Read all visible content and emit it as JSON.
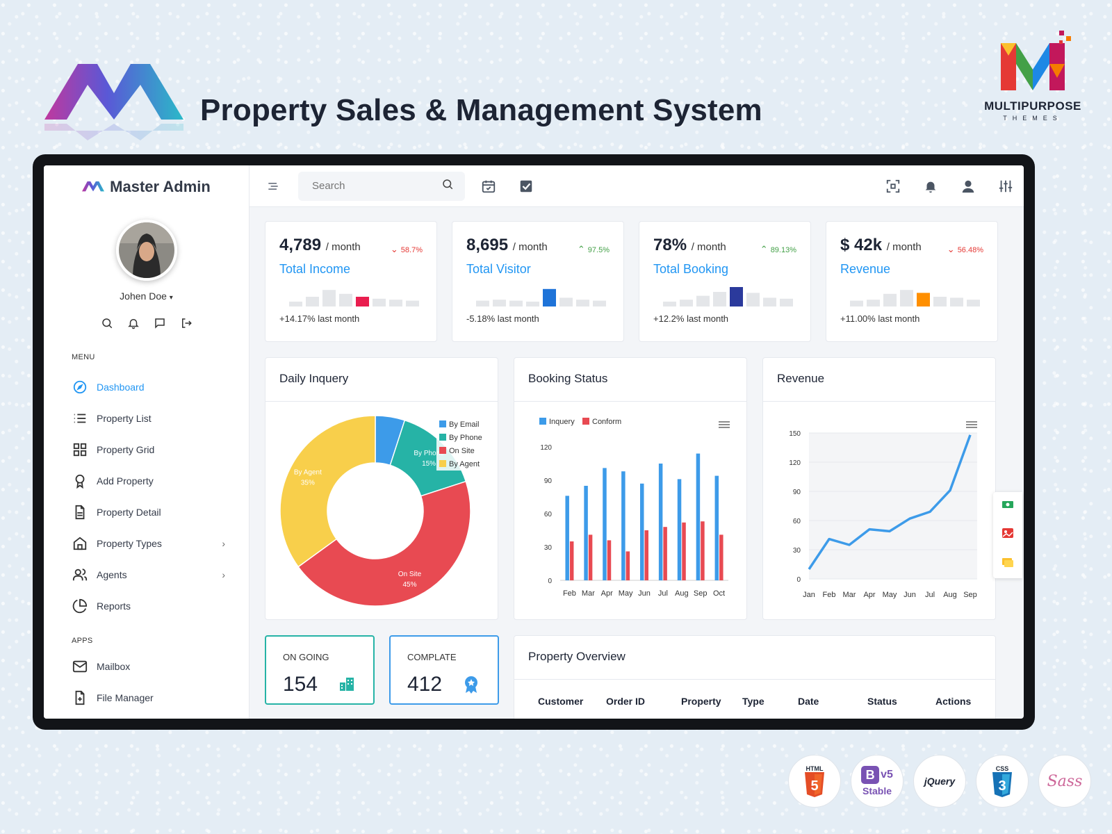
{
  "promo": {
    "title": "Property Sales & Management System",
    "brand_name": "MULTIPURPOSE",
    "brand_sub": "THEMES",
    "badges": [
      "HTML",
      "v5",
      "Stable",
      "jQuery",
      "CSS",
      "Sass"
    ]
  },
  "sidebar": {
    "brand": "Master Admin",
    "user": "Johen Doe",
    "menu_label": "MENU",
    "apps_label": "APPS",
    "menu": [
      {
        "label": "Dashboard",
        "icon": "compass-icon",
        "active": true
      },
      {
        "label": "Property List",
        "icon": "list-icon"
      },
      {
        "label": "Property Grid",
        "icon": "grid-icon"
      },
      {
        "label": "Add Property",
        "icon": "award-icon"
      },
      {
        "label": "Property Detail",
        "icon": "file-text-icon"
      },
      {
        "label": "Property Types",
        "icon": "home-icon",
        "chevron": "›"
      },
      {
        "label": "Agents",
        "icon": "users-icon",
        "chevron": "›"
      },
      {
        "label": "Reports",
        "icon": "pie-chart-icon"
      }
    ],
    "apps": [
      {
        "label": "Mailbox",
        "icon": "mail-icon"
      },
      {
        "label": "File Manager",
        "icon": "file-plus-icon"
      }
    ]
  },
  "topbar": {
    "search_placeholder": "Search"
  },
  "stats": [
    {
      "value": "4,789",
      "per": "/ month",
      "delta": "58.7%",
      "trend": "down",
      "label": "Total Income",
      "foot": "+14.17% last month",
      "accent": "#e91e4f",
      "bars": [
        0.25,
        0.5,
        0.85,
        0.65,
        0.5,
        0.4,
        0.35,
        0.3
      ],
      "highlight": 4
    },
    {
      "value": "8,695",
      "per": "/ month",
      "delta": "97.5%",
      "trend": "up",
      "label": "Total Visitor",
      "foot": "-5.18% last month",
      "accent": "#1e73d8",
      "bars": [
        0.3,
        0.35,
        0.3,
        0.25,
        0.9,
        0.45,
        0.35,
        0.3
      ],
      "highlight": 4
    },
    {
      "value": "78%",
      "per": "/ month",
      "delta": "89.13%",
      "trend": "up",
      "label": "Total Booking",
      "foot": "+12.2% last month",
      "accent": "#2b3a9c",
      "bars": [
        0.25,
        0.35,
        0.55,
        0.75,
        1.0,
        0.7,
        0.45,
        0.4
      ],
      "highlight": 4
    },
    {
      "value": "$ 42k",
      "per": "/ month",
      "delta": "56.48%",
      "trend": "down",
      "label": "Revenue",
      "foot": "+11.00% last month",
      "accent": "#ff8f00",
      "bars": [
        0.3,
        0.35,
        0.65,
        0.85,
        0.7,
        0.5,
        0.45,
        0.35
      ],
      "highlight": 4
    }
  ],
  "daily_inquery": {
    "title": "Daily Inquery",
    "chart_data": {
      "type": "pie",
      "categories": [
        "By Email",
        "By Phone",
        "On Site",
        "By Agent"
      ],
      "values": [
        5,
        15,
        45,
        35
      ],
      "colors": [
        "#3d9be9",
        "#26b3a6",
        "#e84a52",
        "#f8cf4b"
      ],
      "data_labels": [
        {
          "name": "By Phone",
          "pct": "15%"
        },
        {
          "name": "On Site",
          "pct": "45%"
        },
        {
          "name": "By Agent",
          "pct": "35%"
        }
      ],
      "legend": "top-right"
    }
  },
  "booking_status": {
    "title": "Booking Status",
    "chart_data": {
      "type": "bar",
      "categories": [
        "Feb",
        "Mar",
        "Apr",
        "May",
        "Jun",
        "Jul",
        "Aug",
        "Sep",
        "Oct"
      ],
      "series": [
        {
          "name": "Inquery",
          "color": "#3d9be9",
          "values": [
            76,
            85,
            101,
            98,
            87,
            105,
            91,
            114,
            94
          ]
        },
        {
          "name": "Conform",
          "color": "#e84a52",
          "values": [
            35,
            41,
            36,
            26,
            45,
            48,
            52,
            53,
            41
          ]
        }
      ],
      "ylim": [
        0,
        120
      ],
      "yticks": [
        0,
        30,
        60,
        90,
        120
      ],
      "legend": "top-left"
    }
  },
  "revenue_chart": {
    "title": "Revenue",
    "chart_data": {
      "type": "line",
      "categories": [
        "Jan",
        "Feb",
        "Mar",
        "Apr",
        "May",
        "Jun",
        "Jul",
        "Aug",
        "Sep"
      ],
      "series": [
        {
          "color": "#3d9be9",
          "values": [
            10,
            41,
            35,
            51,
            49,
            62,
            69,
            91,
            148
          ]
        }
      ],
      "ylim": [
        0,
        150
      ],
      "yticks": [
        0,
        30,
        60,
        90,
        120,
        150
      ]
    }
  },
  "status_cards": [
    {
      "label": "ON GOING",
      "value": "154",
      "border": "#26b3a6",
      "icon": "buildings-icon"
    },
    {
      "label": "COMPLATE",
      "value": "412",
      "border": "#3d9be9",
      "icon": "badge-icon"
    }
  ],
  "overview": {
    "title": "Property Overview",
    "columns": [
      "Customer",
      "Order ID",
      "Property",
      "Type",
      "Date",
      "Status",
      "Actions"
    ]
  }
}
